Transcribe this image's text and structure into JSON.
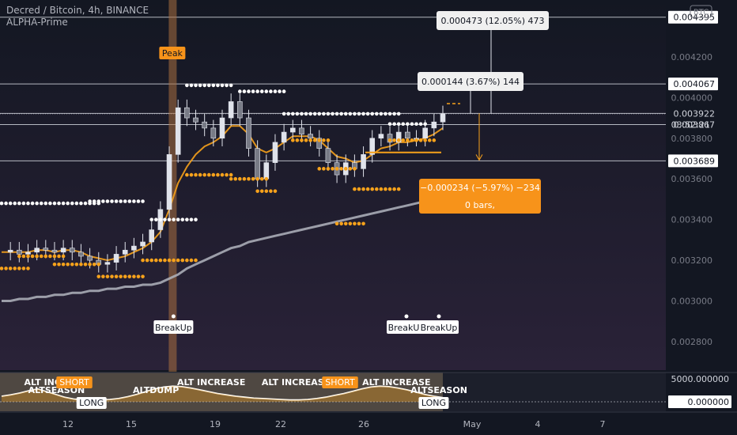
{
  "header": {
    "symbol_title": "Decred / Bitcoin, 4h, BINANCE",
    "indicator_name": "ALPHA-Prime"
  },
  "currency_badge": "BTC",
  "countdown": "03:52:21",
  "colors": {
    "background": "#131722",
    "orange": "#f7a21b",
    "white": "#ffffff",
    "candle": "#e0e3eb",
    "ma": "#9598a1",
    "label_bg": "#f0f0f0",
    "short_bg": "#f7931a"
  },
  "chart_data": {
    "type": "line",
    "title": "",
    "x_ticks": [
      "12",
      "15",
      "19",
      "22",
      "26",
      "May",
      "4",
      "7"
    ],
    "y_ticks": [
      "0.004200",
      "0.004000",
      "0.003800",
      "0.003600",
      "0.003400",
      "0.003200",
      "0.003000",
      "0.002800"
    ],
    "ylim": [
      0.00266,
      0.00446
    ],
    "price_levels": [
      "0.004395",
      "0.004067",
      "0.003922",
      "0.003867",
      "0.003689"
    ],
    "price_level_values": [
      0.004395,
      0.004067,
      0.003922,
      0.003867,
      0.003689
    ],
    "series": [
      {
        "values": [
          0.00324,
          0.00325,
          0.00323,
          0.00324,
          0.00326,
          0.00325,
          0.00324,
          0.00326,
          0.00324,
          0.00322,
          0.0032,
          0.00318,
          0.00319,
          0.00323,
          0.00325,
          0.00327,
          0.00329,
          0.00335,
          0.00345,
          0.00372,
          0.00395,
          0.0039,
          0.00388,
          0.00385,
          0.0038,
          0.0039,
          0.00398,
          0.0039,
          0.00375,
          0.0036,
          0.00368,
          0.00378,
          0.00383,
          0.00385,
          0.00382,
          0.0038,
          0.00375,
          0.00368,
          0.00362,
          0.00368,
          0.00365,
          0.00372,
          0.0038,
          0.00382,
          0.00378,
          0.00383,
          0.0038,
          0.0038,
          0.00385,
          0.00388,
          0.00392
        ]
      },
      {
        "values": [
          0.00324,
          0.00324,
          0.00324,
          0.00324,
          0.00325,
          0.00325,
          0.00324,
          0.00325,
          0.00325,
          0.00324,
          0.00322,
          0.00321,
          0.0032,
          0.00321,
          0.00322,
          0.00324,
          0.00326,
          0.00329,
          0.00334,
          0.00345,
          0.00358,
          0.00366,
          0.00372,
          0.00376,
          0.00378,
          0.00381,
          0.00386,
          0.00386,
          0.00382,
          0.00375,
          0.00373,
          0.00375,
          0.00378,
          0.00381,
          0.00381,
          0.00381,
          0.00379,
          0.00375,
          0.00371,
          0.0037,
          0.00368,
          0.00369,
          0.00372,
          0.00375,
          0.00376,
          0.00378,
          0.00378,
          0.00379,
          0.0038,
          0.00382,
          0.00385
        ]
      },
      {
        "values": [
          0.003,
          0.003,
          0.00301,
          0.00301,
          0.00302,
          0.00302,
          0.00303,
          0.00303,
          0.00304,
          0.00304,
          0.00305,
          0.00305,
          0.00306,
          0.00306,
          0.00307,
          0.00307,
          0.00308,
          0.00308,
          0.00309,
          0.00311,
          0.00313,
          0.00316,
          0.00318,
          0.0032,
          0.00322,
          0.00324,
          0.00326,
          0.00327,
          0.00329,
          0.0033,
          0.00331,
          0.00332,
          0.00333,
          0.00334,
          0.00335,
          0.00336,
          0.00337,
          0.00338,
          0.00339,
          0.0034,
          0.00341,
          0.00342,
          0.00343,
          0.00344,
          0.00345,
          0.00346,
          0.00347,
          0.00348,
          0.00349,
          0.0035,
          0.00351
        ]
      }
    ],
    "resistance_dots": [
      {
        "from": 0,
        "to": 11,
        "value": 0.00348
      },
      {
        "from": 10,
        "to": 16,
        "value": 0.00349
      },
      {
        "from": 17,
        "to": 22,
        "value": 0.0034
      },
      {
        "from": 21,
        "to": 26,
        "value": 0.00406
      },
      {
        "from": 27,
        "to": 32,
        "value": 0.00403
      },
      {
        "from": 32,
        "to": 45,
        "value": 0.00392
      },
      {
        "from": 44,
        "to": 48,
        "value": 0.00387
      }
    ],
    "support_dots": [
      {
        "from": 0,
        "to": 3,
        "value": 0.00316
      },
      {
        "from": 2,
        "to": 7,
        "value": 0.00322
      },
      {
        "from": 6,
        "to": 11,
        "value": 0.00318
      },
      {
        "from": 11,
        "to": 16,
        "value": 0.00312
      },
      {
        "from": 16,
        "to": 22,
        "value": 0.0032
      },
      {
        "from": 21,
        "to": 26,
        "value": 0.00362
      },
      {
        "from": 26,
        "to": 30,
        "value": 0.0036
      },
      {
        "from": 29,
        "to": 31,
        "value": 0.00354
      },
      {
        "from": 33,
        "to": 37,
        "value": 0.00379
      },
      {
        "from": 36,
        "to": 40,
        "value": 0.00365
      },
      {
        "from": 38,
        "to": 41,
        "value": 0.00338
      },
      {
        "from": 40,
        "to": 45,
        "value": 0.00355
      },
      {
        "from": 44,
        "to": 49,
        "value": 0.00379
      }
    ],
    "annotations": {
      "peak": "Peak",
      "breakups": [
        "BreakUp",
        "BreakUp",
        "BreakUp"
      ],
      "measure_up_large": "0.000473 (12.05%) 473",
      "measure_up_small": "0.000144 (3.67%) 144",
      "measure_down_line1": "−0.000234 (−5.97%) −234",
      "measure_down_line2": "0 bars,"
    },
    "oscillator": {
      "y_ticks": [
        "5000.000000",
        "0.000000"
      ],
      "labels": [
        {
          "text": "ALT INCREASE",
          "kind": "plain",
          "at": 6
        },
        {
          "text": "ALTSEASON",
          "kind": "plain",
          "at": 7
        },
        {
          "text": "SHORT",
          "kind": "box",
          "at": 14
        },
        {
          "text": "LONG",
          "kind": "box",
          "at": 19
        },
        {
          "text": "ALT INCREASE",
          "kind": "plain",
          "at": 44
        },
        {
          "text": "ALTDUMP",
          "kind": "plain",
          "at": 33
        },
        {
          "text": "ALT INCREASE",
          "kind": "plain",
          "at": 65
        },
        {
          "text": "SHORT",
          "kind": "box",
          "at": 80
        },
        {
          "text": "ALT INCREASE",
          "kind": "plain",
          "at": 90
        },
        {
          "text": "ALTSEASON",
          "kind": "plain",
          "at": 102
        },
        {
          "text": "LONG",
          "kind": "box",
          "at": 104
        }
      ],
      "values": [
        1200,
        1500,
        1900,
        2400,
        2800,
        2200,
        1600,
        1000,
        600,
        400,
        300,
        400,
        500,
        700,
        1100,
        1600,
        2200,
        2800,
        3200,
        3400,
        3300,
        3000,
        2600,
        2200,
        1800,
        1500,
        1200,
        1000,
        800,
        700,
        600,
        500,
        400,
        400,
        500,
        700,
        1000,
        1400,
        1800,
        2300,
        2800,
        3200,
        3400,
        3300,
        3000,
        2600,
        2100,
        1600,
        1200,
        900
      ]
    }
  }
}
